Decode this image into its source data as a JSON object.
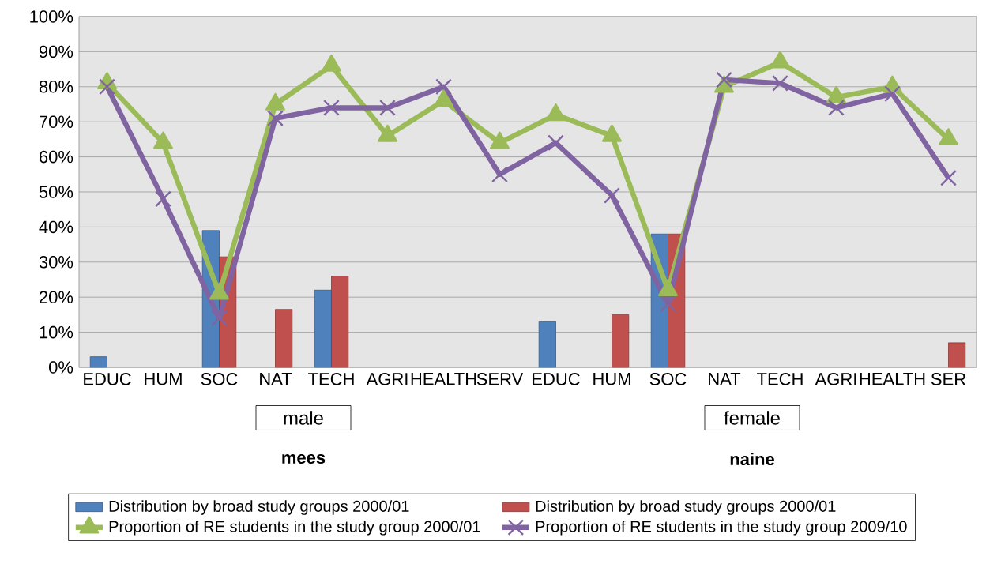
{
  "chart_data": {
    "type": "bar",
    "categories": [
      "EDUC",
      "HUM",
      "SOC",
      "NAT",
      "TECH",
      "AGRI",
      "HEALTH",
      "SERV",
      "EDUC",
      "HUM",
      "SOC",
      "NAT",
      "TECH",
      "AGRI",
      "HEALTH",
      "SER"
    ],
    "series": [
      {
        "name": "Distribution by broad study groups 2000/01",
        "color": "#4f81bd",
        "values": [
          3,
          null,
          39,
          null,
          22,
          null,
          null,
          null,
          13,
          null,
          38,
          null,
          null,
          null,
          null,
          null
        ]
      },
      {
        "name": "Distribution by broad study groups 2000/01",
        "color": "#c0504d",
        "values": [
          null,
          null,
          31.5,
          16.5,
          26,
          null,
          null,
          null,
          null,
          15,
          38,
          null,
          null,
          null,
          null,
          7
        ]
      },
      {
        "name": "Proportion of RE students in the study group 2000/01",
        "type": "line",
        "marker": "triangle",
        "color": "#9bbb59",
        "values": [
          81,
          64,
          21,
          75,
          86,
          66,
          76,
          64,
          72,
          66,
          22,
          80,
          87,
          77,
          80,
          65
        ]
      },
      {
        "name": "Proportion of RE students in the study group 2009/10",
        "type": "line",
        "marker": "cross",
        "color": "#8064a2",
        "values": [
          80,
          48,
          14,
          71,
          74,
          74,
          80,
          55,
          64,
          49,
          18,
          82,
          81,
          74,
          78,
          54
        ]
      }
    ],
    "ylim": [
      0,
      100
    ],
    "yticks": [
      {
        "value": 0,
        "label": "0%"
      },
      {
        "value": 10,
        "label": "10%"
      },
      {
        "value": 20,
        "label": "20%"
      },
      {
        "value": 30,
        "label": "30%"
      },
      {
        "value": 40,
        "label": "40%"
      },
      {
        "value": 50,
        "label": "50%"
      },
      {
        "value": 60,
        "label": "60%"
      },
      {
        "value": 70,
        "label": "70%"
      },
      {
        "value": 80,
        "label": "80%"
      },
      {
        "value": 90,
        "label": "90%"
      },
      {
        "value": 100,
        "label": "100%"
      }
    ],
    "grid": "y",
    "legend": "bottom",
    "annotations": [
      "male",
      "female",
      "mees",
      "naine"
    ]
  }
}
